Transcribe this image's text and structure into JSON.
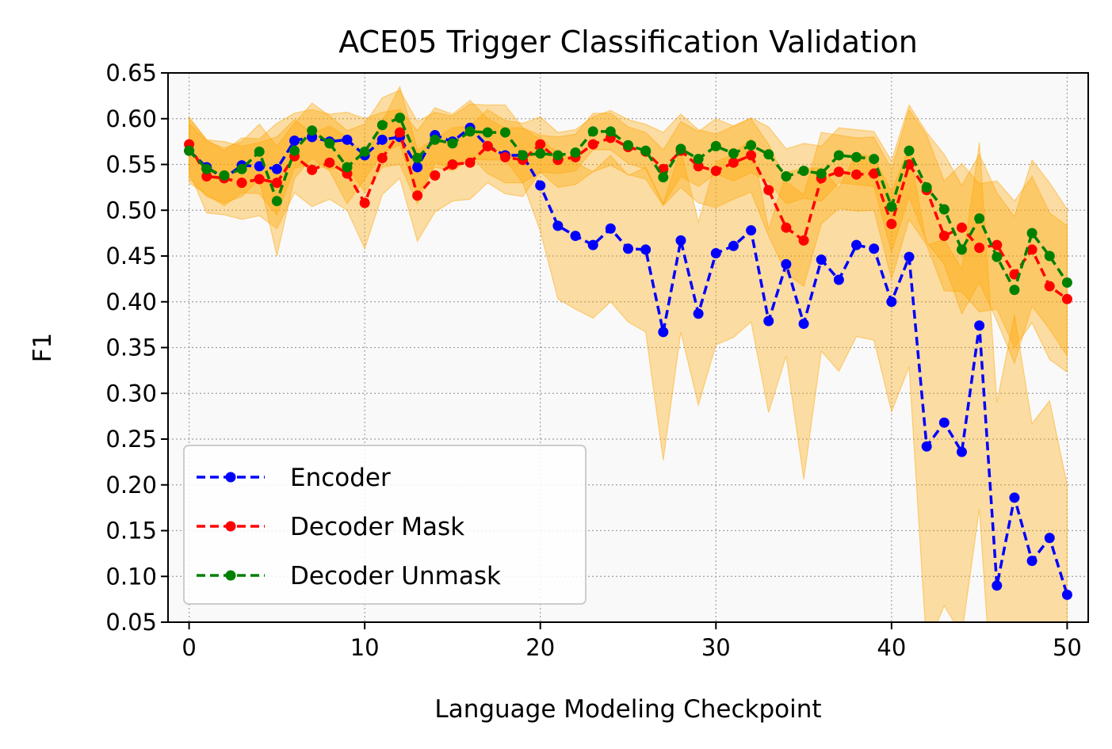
{
  "chart_data": {
    "type": "line",
    "title": "ACE05 Trigger Classification Validation",
    "xlabel": "Language Modeling Checkpoint",
    "ylabel": "F1",
    "xlim": [
      -1.2,
      51.2
    ],
    "ylim": [
      0.05,
      0.65
    ],
    "xticks": [
      "0",
      "10",
      "20",
      "30",
      "40",
      "50"
    ],
    "yticks": [
      "0.05",
      "0.10",
      "0.15",
      "0.20",
      "0.25",
      "0.30",
      "0.35",
      "0.40",
      "0.45",
      "0.50",
      "0.55",
      "0.60",
      "0.65"
    ],
    "grid": true,
    "legend_position": "lower-left",
    "band_color": "#FFA500",
    "x": [
      0,
      1,
      2,
      3,
      4,
      5,
      6,
      7,
      8,
      9,
      10,
      11,
      12,
      13,
      14,
      15,
      16,
      17,
      18,
      19,
      20,
      21,
      22,
      23,
      24,
      25,
      26,
      27,
      28,
      29,
      30,
      31,
      32,
      33,
      34,
      35,
      36,
      37,
      38,
      39,
      40,
      41,
      42,
      43,
      44,
      45,
      46,
      47,
      48,
      49,
      50
    ],
    "series": [
      {
        "name": "Encoder",
        "color": "#0000FF",
        "values": [
          0.565,
          0.547,
          0.535,
          0.549,
          0.548,
          0.545,
          0.576,
          0.58,
          0.575,
          0.577,
          0.56,
          0.577,
          0.58,
          0.547,
          0.582,
          0.575,
          0.59,
          0.57,
          0.56,
          0.56,
          0.527,
          0.483,
          0.472,
          0.462,
          0.48,
          0.458,
          0.457,
          0.367,
          0.467,
          0.387,
          0.453,
          0.461,
          0.478,
          0.379,
          0.441,
          0.376,
          0.446,
          0.424,
          0.462,
          0.458,
          0.4,
          0.449,
          0.242,
          0.268,
          0.236,
          0.374,
          0.09,
          0.186,
          0.117,
          0.142,
          0.08
        ],
        "band": [
          0.035,
          0.03,
          0.03,
          0.03,
          0.03,
          0.05,
          0.03,
          0.03,
          0.03,
          0.03,
          0.04,
          0.03,
          0.03,
          0.04,
          0.03,
          0.03,
          0.03,
          0.03,
          0.03,
          0.03,
          0.05,
          0.08,
          0.08,
          0.08,
          0.08,
          0.08,
          0.09,
          0.14,
          0.1,
          0.1,
          0.1,
          0.1,
          0.1,
          0.1,
          0.1,
          0.17,
          0.1,
          0.1,
          0.1,
          0.1,
          0.12,
          0.12,
          0.22,
          0.2,
          0.2,
          0.2,
          0.2,
          0.2,
          0.15,
          0.15,
          0.12
        ]
      },
      {
        "name": "Decoder Mask",
        "color": "#FF0000",
        "values": [
          0.572,
          0.537,
          0.535,
          0.53,
          0.534,
          0.53,
          0.559,
          0.544,
          0.552,
          0.54,
          0.508,
          0.557,
          0.585,
          0.516,
          0.538,
          0.55,
          0.552,
          0.57,
          0.558,
          0.555,
          0.572,
          0.555,
          0.558,
          0.572,
          0.579,
          0.569,
          0.564,
          0.545,
          0.565,
          0.548,
          0.543,
          0.552,
          0.56,
          0.522,
          0.481,
          0.467,
          0.535,
          0.542,
          0.539,
          0.54,
          0.485,
          0.55,
          0.522,
          0.472,
          0.481,
          0.459,
          0.462,
          0.43,
          0.457,
          0.417,
          0.403
        ],
        "band": [
          0.03,
          0.04,
          0.04,
          0.04,
          0.04,
          0.05,
          0.04,
          0.04,
          0.04,
          0.04,
          0.05,
          0.04,
          0.05,
          0.05,
          0.04,
          0.04,
          0.04,
          0.04,
          0.04,
          0.04,
          0.03,
          0.03,
          0.03,
          0.03,
          0.03,
          0.03,
          0.03,
          0.04,
          0.04,
          0.04,
          0.04,
          0.04,
          0.04,
          0.05,
          0.05,
          0.05,
          0.05,
          0.04,
          0.04,
          0.04,
          0.06,
          0.06,
          0.06,
          0.06,
          0.07,
          0.07,
          0.07,
          0.08,
          0.08,
          0.08,
          0.08
        ]
      },
      {
        "name": "Decoder Unmask",
        "color": "#008000",
        "values": [
          0.565,
          0.545,
          0.538,
          0.545,
          0.564,
          0.51,
          0.565,
          0.587,
          0.573,
          0.547,
          0.564,
          0.593,
          0.601,
          0.557,
          0.577,
          0.573,
          0.586,
          0.585,
          0.585,
          0.56,
          0.562,
          0.56,
          0.563,
          0.586,
          0.586,
          0.571,
          0.565,
          0.536,
          0.567,
          0.556,
          0.57,
          0.562,
          0.571,
          0.561,
          0.537,
          0.543,
          0.54,
          0.56,
          0.558,
          0.556,
          0.504,
          0.565,
          0.525,
          0.501,
          0.457,
          0.491,
          0.449,
          0.413,
          0.475,
          0.45,
          0.421
        ],
        "band": [
          0.03,
          0.03,
          0.03,
          0.03,
          0.03,
          0.06,
          0.03,
          0.03,
          0.03,
          0.04,
          0.03,
          0.03,
          0.03,
          0.04,
          0.03,
          0.03,
          0.03,
          0.03,
          0.03,
          0.03,
          0.02,
          0.02,
          0.02,
          0.02,
          0.02,
          0.02,
          0.02,
          0.03,
          0.03,
          0.03,
          0.03,
          0.03,
          0.03,
          0.03,
          0.03,
          0.03,
          0.03,
          0.03,
          0.03,
          0.03,
          0.05,
          0.05,
          0.06,
          0.06,
          0.07,
          0.07,
          0.07,
          0.08,
          0.08,
          0.08,
          0.08
        ]
      }
    ]
  }
}
